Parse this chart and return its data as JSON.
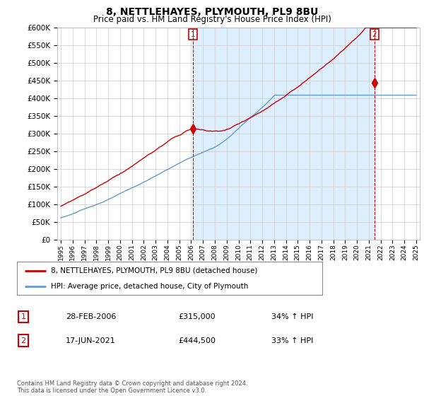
{
  "title": "8, NETTLEHAYES, PLYMOUTH, PL9 8BU",
  "subtitle": "Price paid vs. HM Land Registry's House Price Index (HPI)",
  "ylim": [
    0,
    600000
  ],
  "yticks": [
    0,
    50000,
    100000,
    150000,
    200000,
    250000,
    300000,
    350000,
    400000,
    450000,
    500000,
    550000,
    600000
  ],
  "ytick_labels": [
    "£0",
    "£50K",
    "£100K",
    "£150K",
    "£200K",
    "£250K",
    "£300K",
    "£350K",
    "£400K",
    "£450K",
    "£500K",
    "£550K",
    "£600K"
  ],
  "red_line_color": "#cc0000",
  "blue_line_color": "#6699cc",
  "shading_color": "#ddeeff",
  "legend_label_red": "8, NETTLEHAYES, PLYMOUTH, PL9 8BU (detached house)",
  "legend_label_blue": "HPI: Average price, detached house, City of Plymouth",
  "sale1_date": "28-FEB-2006",
  "sale1_price": "£315,000",
  "sale1_hpi": "34% ↑ HPI",
  "sale1_x": 2006.16,
  "sale1_y": 315000,
  "sale2_date": "17-JUN-2021",
  "sale2_price": "£444,500",
  "sale2_hpi": "33% ↑ HPI",
  "sale2_x": 2021.46,
  "sale2_y": 444500,
  "footer": "Contains HM Land Registry data © Crown copyright and database right 2024.\nThis data is licensed under the Open Government Licence v3.0.",
  "background_color": "#ffffff",
  "grid_color": "#cccccc",
  "xlim_left": 1994.7,
  "xlim_right": 2025.3
}
